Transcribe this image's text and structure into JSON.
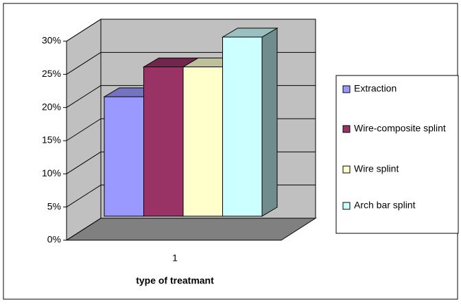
{
  "chart_data": {
    "type": "bar3d",
    "categories": [
      "1"
    ],
    "x_label": "type of treatmant",
    "series": [
      {
        "name": "Extraction",
        "color": "#9999ff",
        "values": [
          18
        ]
      },
      {
        "name": "Wire-composite splint",
        "color": "#993366",
        "values": [
          22.5
        ]
      },
      {
        "name": "Wire splint",
        "color": "#ffffcc",
        "values": [
          22.5
        ]
      },
      {
        "name": "Arch bar splint",
        "color": "#ccffff",
        "values": [
          27
        ]
      }
    ],
    "ylim": [
      0,
      30
    ],
    "yticks": [
      {
        "value": 0,
        "label": "0%"
      },
      {
        "value": 5,
        "label": "5%"
      },
      {
        "value": 10,
        "label": "10%"
      },
      {
        "value": 15,
        "label": "15%"
      },
      {
        "value": 20,
        "label": "20%"
      },
      {
        "value": 25,
        "label": "25%"
      },
      {
        "value": 30,
        "label": "30%"
      }
    ],
    "grid": true,
    "legend": "right"
  }
}
